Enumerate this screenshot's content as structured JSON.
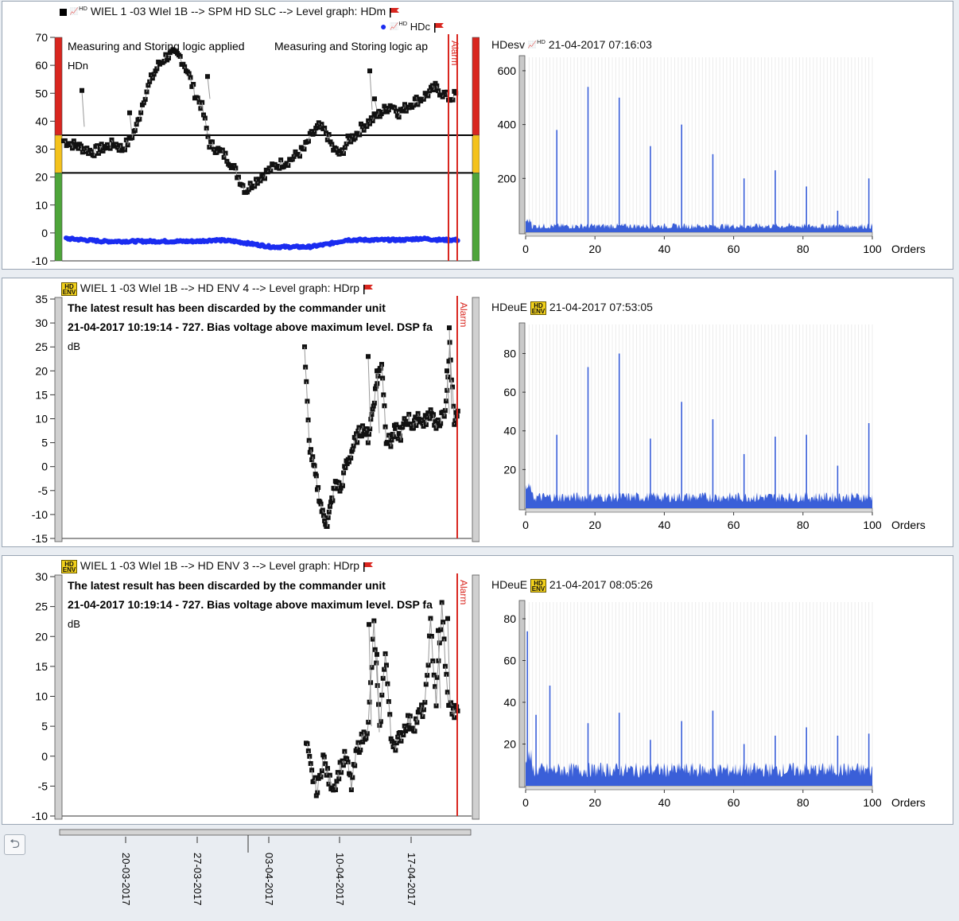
{
  "panels": [
    {
      "title": "WIEL  1    -03 WIel 1B --> SPM HD SLC --> Level graph: HDm",
      "legend_label": "HDc",
      "left_notes": [
        "Measuring and Storing logic applied",
        "Measuring and Storing logic ap",
        "HDn"
      ],
      "alarm_label": "Alarm",
      "spectrum_label": "HDesv",
      "spectrum_time": "21-04-2017 07:16:03"
    },
    {
      "title": "WIEL  1    -03 WIel 1B --> HD ENV 4 --> Level graph: HDrp",
      "left_notes": [
        "The latest result has been discarded by the commander unit",
        "21-04-2017 10:19:14 - 727. Bias voltage above maximum level. DSP fa",
        "dB"
      ],
      "alarm_label": "Alarm",
      "spectrum_label": "HDeuE",
      "spectrum_time": "21-04-2017 07:53:05"
    },
    {
      "title": "WIEL  1    -03 WIel 1B --> HD  ENV 3 --> Level graph: HDrp",
      "left_notes": [
        "The latest result has been discarded by the commander unit",
        "21-04-2017 10:19:14 - 727. Bias voltage above maximum level. DSP fa",
        "dB"
      ],
      "alarm_label": "Alarm",
      "spectrum_label": "HDeuE",
      "spectrum_time": "21-04-2017 08:05:26"
    }
  ],
  "icons": {
    "hd_env": "HD ENV",
    "hd_chart": "chart-hd-icon",
    "flag": "red-flag-icon",
    "back": "back-arrow-icon"
  },
  "dates": [
    "20-03-2017",
    "27-03-2017",
    "03-04-2017",
    "10-04-2017",
    "17-04-2017"
  ],
  "colors": {
    "red": "#d9261f",
    "yellow": "#f4c21c",
    "green": "#4ea53a",
    "blue": "#3a5fd8",
    "marker": "#111111"
  },
  "chart_data": [
    {
      "type": "scatter",
      "ylim": [
        -10,
        70
      ],
      "yticks": [
        -10,
        0,
        10,
        20,
        30,
        40,
        50,
        60,
        70
      ],
      "thresholds": [
        21.5,
        35
      ],
      "series": [
        {
          "name": "HDm",
          "values_approx": [
            33,
            32,
            31,
            30,
            29,
            30,
            31,
            32,
            30,
            33,
            38,
            48,
            55,
            60,
            63,
            64,
            63,
            58,
            50,
            45,
            32,
            30,
            28,
            25,
            20,
            15,
            18,
            20,
            22,
            24,
            25,
            26,
            28,
            30,
            35,
            38,
            36,
            30,
            28,
            33,
            35,
            38,
            40,
            42,
            44,
            46,
            43,
            45,
            47,
            48,
            50,
            52,
            50,
            48,
            50
          ]
        },
        {
          "name": "HDc",
          "values_approx": [
            -2,
            -2.5,
            -3,
            -3,
            -3,
            -3,
            -3,
            -3,
            -2.5,
            -3,
            -4,
            -5,
            -5,
            -5,
            -4,
            -2.5,
            -2.5,
            -2.5,
            -2.5,
            -2,
            -2.5,
            -2.5
          ]
        }
      ]
    },
    {
      "type": "scatter",
      "ylim": [
        -15,
        35
      ],
      "yticks": [
        -15,
        -10,
        -5,
        0,
        5,
        10,
        15,
        20,
        25,
        30,
        35
      ],
      "series": [
        {
          "name": "HDrp",
          "values_approx": [
            25,
            5,
            0,
            -5,
            -10,
            -12,
            -7,
            -3,
            -5,
            0,
            2,
            5,
            7,
            8,
            6,
            12,
            18,
            22,
            6,
            5,
            8,
            6,
            9,
            10,
            8,
            11,
            9,
            10,
            12,
            8,
            10,
            11,
            25,
            10,
            11
          ]
        }
      ]
    },
    {
      "type": "scatter",
      "ylim": [
        -10,
        30
      ],
      "yticks": [
        -10,
        -5,
        0,
        5,
        10,
        15,
        20,
        25,
        30
      ],
      "series": [
        {
          "name": "HDrp",
          "values_approx": [
            2,
            -3,
            -6,
            0,
            -4,
            -5,
            -2,
            0,
            -5,
            1,
            3,
            5,
            22,
            4,
            18,
            3,
            2,
            4,
            6,
            5,
            7,
            8,
            22,
            9,
            25,
            10,
            7,
            8
          ]
        }
      ]
    },
    {
      "type": "bar",
      "xlabel": "Orders",
      "xlim": [
        0,
        100
      ],
      "xticks": [
        0,
        20,
        40,
        60,
        80,
        100
      ],
      "yticks": [
        200,
        400,
        600
      ],
      "peaks": [
        {
          "x": 9,
          "y": 380
        },
        {
          "x": 18,
          "y": 540
        },
        {
          "x": 27,
          "y": 500
        },
        {
          "x": 36,
          "y": 320
        },
        {
          "x": 45,
          "y": 400
        },
        {
          "x": 54,
          "y": 290
        },
        {
          "x": 63,
          "y": 200
        },
        {
          "x": 72,
          "y": 230
        },
        {
          "x": 81,
          "y": 170
        },
        {
          "x": 90,
          "y": 80
        },
        {
          "x": 99,
          "y": 200
        }
      ]
    },
    {
      "type": "bar",
      "xlabel": "Orders",
      "xlim": [
        0,
        100
      ],
      "xticks": [
        0,
        20,
        40,
        60,
        80,
        100
      ],
      "yticks": [
        20,
        40,
        60,
        80
      ],
      "peaks": [
        {
          "x": 9,
          "y": 38
        },
        {
          "x": 18,
          "y": 73
        },
        {
          "x": 27,
          "y": 80
        },
        {
          "x": 36,
          "y": 36
        },
        {
          "x": 45,
          "y": 55
        },
        {
          "x": 54,
          "y": 46
        },
        {
          "x": 63,
          "y": 28
        },
        {
          "x": 72,
          "y": 37
        },
        {
          "x": 81,
          "y": 38
        },
        {
          "x": 90,
          "y": 22
        },
        {
          "x": 99,
          "y": 44
        }
      ]
    },
    {
      "type": "bar",
      "xlabel": "Orders",
      "xlim": [
        0,
        100
      ],
      "xticks": [
        0,
        20,
        40,
        60,
        80,
        100
      ],
      "yticks": [
        20,
        40,
        60,
        80
      ],
      "peaks": [
        {
          "x": 0.5,
          "y": 74
        },
        {
          "x": 3,
          "y": 34
        },
        {
          "x": 7,
          "y": 48
        },
        {
          "x": 18,
          "y": 30
        },
        {
          "x": 27,
          "y": 35
        },
        {
          "x": 36,
          "y": 22
        },
        {
          "x": 45,
          "y": 31
        },
        {
          "x": 54,
          "y": 36
        },
        {
          "x": 63,
          "y": 20
        },
        {
          "x": 72,
          "y": 24
        },
        {
          "x": 81,
          "y": 28
        },
        {
          "x": 90,
          "y": 24
        },
        {
          "x": 99,
          "y": 25
        }
      ]
    }
  ]
}
